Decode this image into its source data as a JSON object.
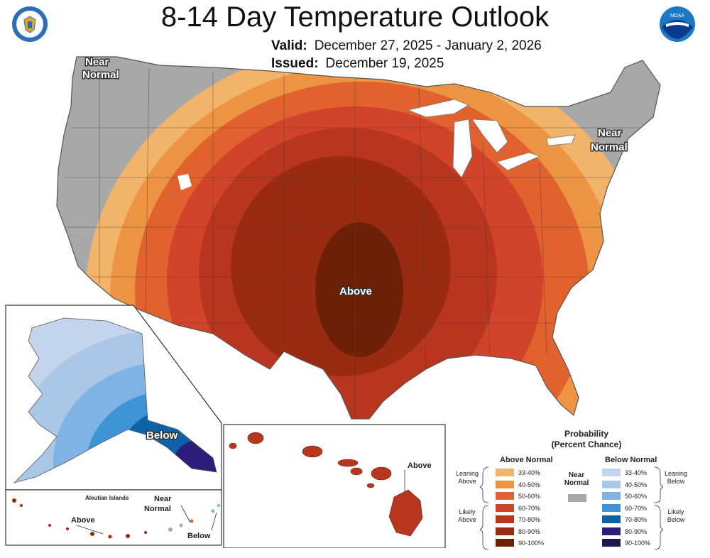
{
  "title": "8-14 Day Temperature Outlook",
  "valid": {
    "label": "Valid:",
    "value": "December 27, 2025 - January 2, 2026"
  },
  "issued": {
    "label": "Issued:",
    "value": "December 19, 2025"
  },
  "map_labels": {
    "near_normal_west_1": "Near",
    "near_normal_west_2": "Normal",
    "near_normal_ne_1": "Near",
    "near_normal_ne_2": "Normal",
    "above_conus": "Above",
    "below_alaska": "Below",
    "aleutian_islands": "Aleutian Islands",
    "aleutian_near_1": "Near",
    "aleutian_near_2": "Normal",
    "aleutian_above": "Above",
    "aleutian_below": "Below",
    "hawaii_above": "Above"
  },
  "legend": {
    "title_1": "Probability",
    "title_2": "(Percent Chance)",
    "above_header": "Above Normal",
    "below_header": "Below Normal",
    "near_normal_1": "Near",
    "near_normal_2": "Normal",
    "leaning_above_1": "Leaning",
    "leaning_above_2": "Above",
    "likely_above_1": "Likely",
    "likely_above_2": "Above",
    "leaning_below_1": "Leaning",
    "leaning_below_2": "Below",
    "likely_below_1": "Likely",
    "likely_below_2": "Below",
    "ranges": [
      "33-40%",
      "40-50%",
      "50-60%",
      "60-70%",
      "70-80%",
      "80-90%",
      "90-100%"
    ],
    "above_colors": [
      "#f2b36a",
      "#ed9442",
      "#e2622f",
      "#d2442a",
      "#b8351f",
      "#9a2b12",
      "#6e2007"
    ],
    "below_colors": [
      "#c3d4ec",
      "#a9c8e8",
      "#7fb3e3",
      "#3f94d6",
      "#0e62aa",
      "#2d1d7a",
      "#1f1450"
    ],
    "near_color": "#a8a8a8"
  },
  "icons": [
    "doc-seal-icon",
    "noaa-logo-icon"
  ]
}
